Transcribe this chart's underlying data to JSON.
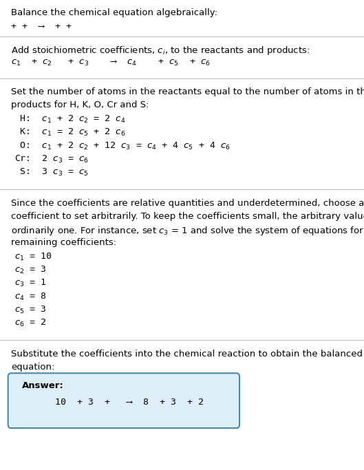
{
  "title": "Balance the chemical equation algebraically:",
  "line1": "+ +  ⟶  + +",
  "section2_header": "Add stoichiometric coefficients, $c_i$, to the reactants and products:",
  "section2_eq": "$c_1$  + $c_2$   + $c_3$    ⟶  $c_4$    + $c_5$  + $c_6$",
  "section3_header_1": "Set the number of atoms in the reactants equal to the number of atoms in the",
  "section3_header_2": "products for H, K, O, Cr and S:",
  "equations": [
    " H:  $c_1$ + 2 $c_2$ = 2 $c_4$",
    " K:  $c_1$ = 2 $c_5$ + 2 $c_6$",
    " O:  $c_1$ + 2 $c_2$ + 12 $c_3$ = $c_4$ + 4 $c_5$ + 4 $c_6$",
    "Cr:  2 $c_3$ = $c_6$",
    " S:  3 $c_3$ = $c_5$"
  ],
  "section4_header_1": "Since the coefficients are relative quantities and underdetermined, choose a",
  "section4_header_2": "coefficient to set arbitrarily. To keep the coefficients small, the arbitrary value is",
  "section4_header_3": "ordinarily one. For instance, set $c_3$ = 1 and solve the system of equations for the",
  "section4_header_4": "remaining coefficients:",
  "coefficients": [
    "$c_1$ = 10",
    "$c_2$ = 3",
    "$c_3$ = 1",
    "$c_4$ = 8",
    "$c_5$ = 3",
    "$c_6$ = 2"
  ],
  "section5_header_1": "Substitute the coefficients into the chemical reaction to obtain the balanced",
  "section5_header_2": "equation:",
  "answer_label": "Answer:",
  "answer_eq": "      10  + 3  +   ⟶  8  + 3  + 2",
  "bg_color": "#ffffff",
  "text_color": "#000000",
  "line_color": "#bbbbbb",
  "answer_box_color": "#deeef6",
  "answer_box_border": "#4488aa",
  "fs_body": 9.5,
  "fs_mono": 9.5,
  "lh": 0.028
}
